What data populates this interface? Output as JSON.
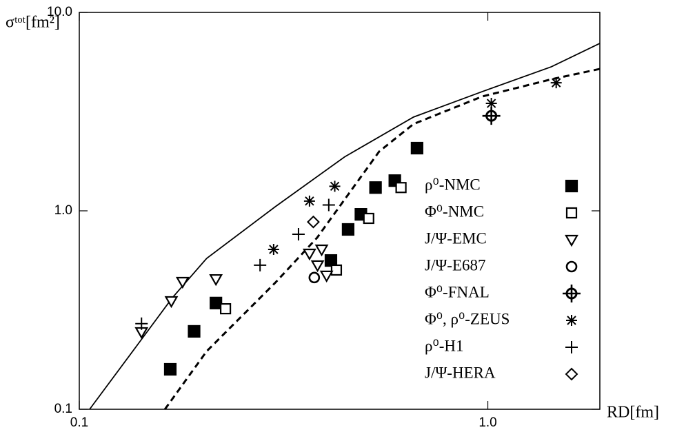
{
  "chart_data": {
    "type": "scatter",
    "x_label": "RD[fm]",
    "y_label": "σᵗᵒᵗ[fm²]",
    "log_x": true,
    "log_y": true,
    "xlim": [
      0.1,
      1.88
    ],
    "ylim": [
      0.1,
      10
    ],
    "xticks": [
      0.1,
      {
        "value": 1,
        "label": "1.0"
      }
    ],
    "yticks": [
      0.1,
      {
        "value": 1,
        "label": "1.0"
      },
      {
        "value": 10,
        "label": "10.0"
      }
    ],
    "series": [
      {
        "name": "ρ⁰-NMC",
        "marker": "filled-square",
        "color": "#000000",
        "x": [
          0.167,
          0.191,
          0.216,
          0.413,
          0.455,
          0.489,
          0.531,
          0.592,
          0.671
        ],
        "values": [
          0.159,
          0.247,
          0.343,
          0.562,
          0.806,
          0.96,
          1.31,
          1.42,
          2.07
        ]
      },
      {
        "name": "Φ⁰-NMC",
        "marker": "square",
        "color": "#000000",
        "x": [
          0.228,
          0.426,
          0.511,
          0.613
        ],
        "values": [
          0.321,
          0.503,
          0.916,
          1.31
        ]
      },
      {
        "name": "J/Ψ-EMC",
        "marker": "triangle-down",
        "color": "#000000",
        "x": [
          0.142,
          0.168,
          0.179,
          0.216,
          0.366,
          0.383,
          0.392,
          0.403
        ],
        "values": [
          0.245,
          0.351,
          0.439,
          0.453,
          0.609,
          0.532,
          0.639,
          0.472
        ]
      },
      {
        "name": "J/Ψ-E687",
        "marker": "circle",
        "color": "#000000",
        "x": [
          0.376
        ],
        "values": [
          0.461
        ]
      },
      {
        "name": "Φ⁰-FNAL",
        "marker": "circle-plus",
        "color": "#000000",
        "x": [
          1.02
        ],
        "values": [
          3.01
        ]
      },
      {
        "name": "Φ⁰, ρ⁰-ZEUS",
        "marker": "asterisk",
        "color": "#000000",
        "x": [
          0.299,
          0.366,
          0.422,
          1.02,
          1.47
        ],
        "values": [
          0.639,
          1.12,
          1.33,
          3.48,
          4.42
        ]
      },
      {
        "name": "ρ⁰-H1",
        "marker": "plus",
        "color": "#000000",
        "x": [
          0.142,
          0.277,
          0.344,
          0.408
        ],
        "values": [
          0.27,
          0.532,
          0.762,
          1.07
        ]
      },
      {
        "name": "J/Ψ-HERA",
        "marker": "diamond",
        "color": "#000000",
        "x": [
          0.374
        ],
        "values": [
          0.879
        ]
      }
    ],
    "curves": [
      {
        "style": "solid",
        "color": "#000000",
        "x": [
          0.106,
          0.139,
          0.169,
          0.205,
          0.302,
          0.446,
          0.658,
          0.969,
          1.43,
          1.88
        ],
        "values": [
          0.1,
          0.212,
          0.365,
          0.576,
          1.05,
          1.87,
          2.97,
          3.99,
          5.32,
          6.98
        ]
      },
      {
        "style": "dashed",
        "color": "#000000",
        "x": [
          0.162,
          0.205,
          0.302,
          0.382,
          0.446,
          0.542,
          0.658,
          0.969,
          1.43,
          1.88
        ],
        "values": [
          0.1,
          0.196,
          0.435,
          0.732,
          1.14,
          1.99,
          2.74,
          3.77,
          4.6,
          5.19
        ]
      }
    ]
  }
}
